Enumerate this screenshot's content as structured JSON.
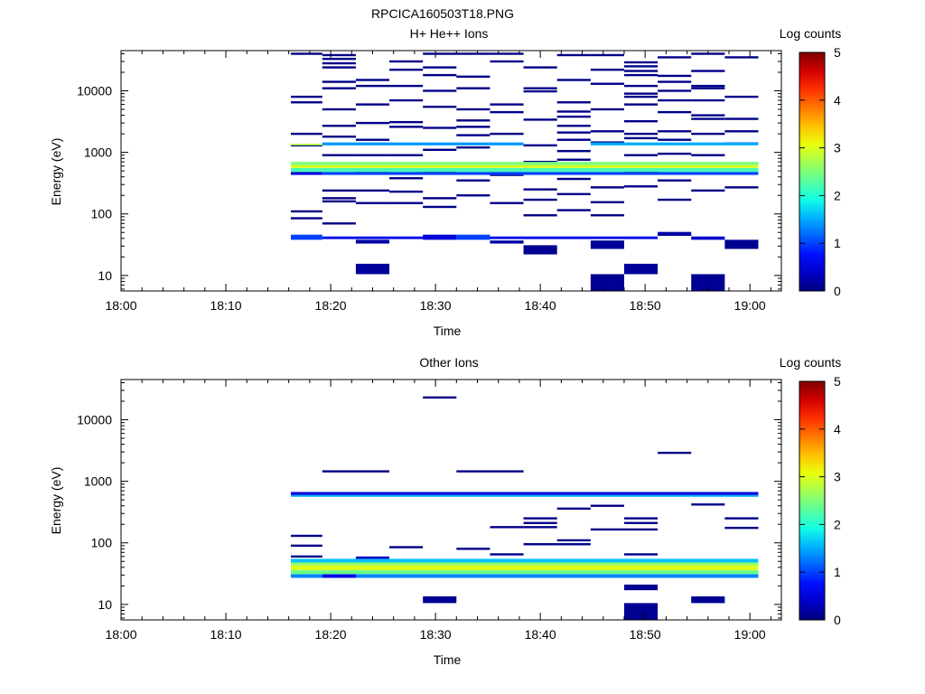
{
  "figure": {
    "title": "RPCICA160503T18.PNG"
  },
  "colorbar_colors": [
    "#00007f",
    "#0000c8",
    "#0010ff",
    "#0064ff",
    "#00b4ff",
    "#12ffe4",
    "#5aff9c",
    "#a2ff54",
    "#eaff0c",
    "#ffc000",
    "#ff7800",
    "#ff3000",
    "#d00000",
    "#800000"
  ],
  "chart_data": [
    {
      "type": "heatmap",
      "title": "H+ He++ Ions",
      "xlabel": "Time",
      "ylabel": "Energy (eV)",
      "x_ticks": [
        "18:00",
        "18:10",
        "18:20",
        "18:30",
        "18:40",
        "18:50",
        "19:00"
      ],
      "x_range_minutes": [
        0,
        63
      ],
      "y_scale": "log",
      "y_range": [
        5.6,
        45000
      ],
      "y_ticks": [
        10,
        100,
        1000,
        10000
      ],
      "y_tick_labels": [
        "10",
        "100",
        "1000",
        "10000"
      ],
      "colorbar": {
        "label": "Log counts",
        "range": [
          0,
          5
        ],
        "ticks": [
          "0",
          "1",
          "2",
          "3",
          "4",
          "5"
        ]
      },
      "sweep_starts_minutes": [
        16.2,
        19.2,
        22.4,
        25.6,
        28.8,
        32.0,
        35.2,
        38.4,
        41.6,
        44.8,
        48.0,
        51.2,
        54.4,
        57.6,
        60.8
      ],
      "cells": [
        {
          "t": [
            16.2,
            19.2
          ],
          "e": [
            38,
            46
          ],
          "v": 1.0
        },
        {
          "t": [
            19.2,
            51.2
          ],
          "e": [
            39,
            43
          ],
          "v": 0.6
        },
        {
          "t": [
            28.8,
            32.0
          ],
          "e": [
            38,
            46
          ],
          "v": 0.5
        },
        {
          "t": [
            32.0,
            35.2
          ],
          "e": [
            38,
            46
          ],
          "v": 1.0
        },
        {
          "t": [
            35.2,
            38.4
          ],
          "e": [
            33,
            37
          ],
          "v": 0.2
        },
        {
          "t": [
            38.4,
            41.6
          ],
          "e": [
            22,
            31
          ],
          "v": 0.1
        },
        {
          "t": [
            22.4,
            25.6
          ],
          "e": [
            33,
            38
          ],
          "v": 0.2
        },
        {
          "t": [
            44.8,
            48.0
          ],
          "e": [
            27,
            37
          ],
          "v": 0.15
        },
        {
          "t": [
            51.2,
            54.4
          ],
          "e": [
            44,
            51
          ],
          "v": 0.2
        },
        {
          "t": [
            54.4,
            57.6
          ],
          "e": [
            38,
            43
          ],
          "v": 0.4
        },
        {
          "t": [
            57.6,
            60.8
          ],
          "e": [
            27,
            38
          ],
          "v": 0.1
        },
        {
          "t": [
            22.4,
            25.6
          ],
          "e": [
            10.5,
            15.5
          ],
          "v": 0.15
        },
        {
          "t": [
            48.0,
            51.2
          ],
          "e": [
            10.5,
            15.5
          ],
          "v": 0.15
        },
        {
          "t": [
            44.8,
            48.0
          ],
          "e": [
            5.6,
            10.5
          ],
          "v": 0.1
        },
        {
          "t": [
            54.4,
            57.6
          ],
          "e": [
            5.6,
            10.5
          ],
          "v": 0.1
        },
        {
          "t": [
            16.2,
            60.8
          ],
          "e": [
            480,
            560
          ],
          "v": 2.2
        },
        {
          "t": [
            16.2,
            60.8
          ],
          "e": [
            560,
            620
          ],
          "v": 3.0
        },
        {
          "t": [
            16.2,
            60.8
          ],
          "e": [
            620,
            700
          ],
          "v": 2.5
        },
        {
          "t": [
            16.2,
            19.2
          ],
          "e": [
            430,
            480
          ],
          "v": 0.5
        },
        {
          "t": [
            19.2,
            60.8
          ],
          "e": [
            430,
            480
          ],
          "v": 1.0
        },
        {
          "t": [
            16.2,
            19.2
          ],
          "e": [
            1300,
            1380
          ],
          "v": 2.8
        },
        {
          "t": [
            19.2,
            38.4
          ],
          "e": [
            1300,
            1450
          ],
          "v": 1.4
        },
        {
          "t": [
            44.8,
            60.8
          ],
          "e": [
            1300,
            1450
          ],
          "v": 1.5
        }
      ],
      "sparse_lines": [
        {
          "t": [
            16.2,
            19.2
          ],
          "e": [
            40000,
            8000,
            6500,
            2000,
            1300,
            110,
            85
          ]
        },
        {
          "t": [
            19.2,
            22.4
          ],
          "e": [
            38000,
            33000,
            28000,
            24000,
            14000,
            11000,
            5000,
            2700,
            1800,
            900,
            520,
            240,
            180,
            160,
            70
          ]
        },
        {
          "t": [
            22.4,
            25.6
          ],
          "e": [
            15000,
            12000,
            6000,
            3000,
            1600,
            900,
            500,
            240,
            150
          ]
        },
        {
          "t": [
            25.6,
            28.8
          ],
          "e": [
            30000,
            22000,
            12000,
            7000,
            3100,
            2600,
            900,
            380,
            230,
            150
          ]
        },
        {
          "t": [
            28.8,
            32.0
          ],
          "e": [
            40000,
            24000,
            18000,
            10000,
            5500,
            2500,
            1100,
            480,
            180,
            130
          ]
        },
        {
          "t": [
            32.0,
            35.2
          ],
          "e": [
            40000,
            17000,
            11000,
            5000,
            3300,
            2600,
            1900,
            1200,
            350,
            200
          ]
        },
        {
          "t": [
            35.2,
            38.4
          ],
          "e": [
            40000,
            30000,
            6000,
            4500,
            2000,
            430,
            150
          ]
        },
        {
          "t": [
            38.4,
            41.6
          ],
          "e": [
            24000,
            11000,
            9800,
            3400,
            1300,
            700,
            250,
            170,
            95
          ]
        },
        {
          "t": [
            41.6,
            44.8
          ],
          "e": [
            38000,
            15000,
            6500,
            4600,
            3800,
            2700,
            2100,
            1600,
            1050,
            760,
            370,
            210,
            115
          ]
        },
        {
          "t": [
            44.8,
            48.0
          ],
          "e": [
            38000,
            22000,
            13000,
            5000,
            2200,
            1450,
            270,
            155,
            95
          ]
        },
        {
          "t": [
            48.0,
            51.2
          ],
          "e": [
            29000,
            25000,
            21000,
            18000,
            12000,
            9000,
            8000,
            6000,
            3200,
            2000,
            1700,
            900,
            480,
            280
          ]
        },
        {
          "t": [
            51.2,
            54.4
          ],
          "e": [
            35000,
            17500,
            14000,
            10000,
            7000,
            4500,
            2200,
            1600,
            950,
            350,
            170
          ]
        },
        {
          "t": [
            54.4,
            57.6
          ],
          "e": [
            40000,
            21000,
            12000,
            11000,
            7000,
            4000,
            3500,
            2000,
            900,
            240
          ]
        },
        {
          "t": [
            57.6,
            60.8
          ],
          "e": [
            35000,
            8000,
            3500,
            2200,
            1400,
            270
          ]
        }
      ]
    },
    {
      "type": "heatmap",
      "title": "Other Ions",
      "xlabel": "Time",
      "ylabel": "Energy (eV)",
      "x_ticks": [
        "18:00",
        "18:10",
        "18:20",
        "18:30",
        "18:40",
        "18:50",
        "19:00"
      ],
      "x_range_minutes": [
        0,
        63
      ],
      "y_scale": "log",
      "y_range": [
        5.6,
        45000
      ],
      "y_ticks": [
        10,
        100,
        1000,
        10000
      ],
      "y_tick_labels": [
        "10",
        "100",
        "1000",
        "10000"
      ],
      "colorbar": {
        "label": "Log counts",
        "range": [
          0,
          5
        ],
        "ticks": [
          "0",
          "1",
          "2",
          "3",
          "4",
          "5"
        ]
      },
      "sweep_starts_minutes": [
        16.2,
        19.2,
        22.4,
        25.6,
        28.8,
        32.0,
        35.2,
        38.4,
        41.6,
        44.8,
        48.0,
        51.2,
        54.4,
        57.6,
        60.8
      ],
      "cells": [
        {
          "t": [
            16.2,
            60.8
          ],
          "e": [
            27,
            31
          ],
          "v": 1.3
        },
        {
          "t": [
            19.2,
            22.4
          ],
          "e": [
            27,
            31
          ],
          "v": 0.6
        },
        {
          "t": [
            16.2,
            60.8
          ],
          "e": [
            31,
            36
          ],
          "v": 2.4
        },
        {
          "t": [
            16.2,
            60.8
          ],
          "e": [
            36,
            43
          ],
          "v": 3.0
        },
        {
          "t": [
            16.2,
            60.8
          ],
          "e": [
            43,
            48
          ],
          "v": 2.6
        },
        {
          "t": [
            16.2,
            60.8
          ],
          "e": [
            48,
            55
          ],
          "v": 1.6
        },
        {
          "t": [
            22.4,
            25.6
          ],
          "e": [
            55,
            60
          ],
          "v": 0.4
        },
        {
          "t": [
            16.2,
            60.8
          ],
          "e": [
            560,
            600
          ],
          "v": 1.5
        },
        {
          "t": [
            16.2,
            60.8
          ],
          "e": [
            600,
            670
          ],
          "v": 0.5
        },
        {
          "t": [
            28.8,
            32.0
          ],
          "e": [
            10.5,
            13.5
          ],
          "v": 0.1
        },
        {
          "t": [
            48.0,
            51.2
          ],
          "e": [
            17,
            21
          ],
          "v": 0.1
        },
        {
          "t": [
            48.0,
            51.2
          ],
          "e": [
            5.6,
            10.5
          ],
          "v": 0.1
        },
        {
          "t": [
            54.4,
            57.6
          ],
          "e": [
            10.5,
            13.5
          ],
          "v": 0.1
        }
      ],
      "sparse_lines": [
        {
          "t": [
            16.2,
            19.2
          ],
          "e": [
            130,
            90,
            60
          ]
        },
        {
          "t": [
            19.2,
            25.6
          ],
          "e": [
            1450
          ]
        },
        {
          "t": [
            25.6,
            28.8
          ],
          "e": [
            85
          ]
        },
        {
          "t": [
            28.8,
            32.0
          ],
          "e": [
            23000
          ]
        },
        {
          "t": [
            32.0,
            38.4
          ],
          "e": [
            1450
          ]
        },
        {
          "t": [
            32.0,
            35.2
          ],
          "e": [
            80
          ]
        },
        {
          "t": [
            35.2,
            38.4
          ],
          "e": [
            180,
            65
          ]
        },
        {
          "t": [
            38.4,
            41.6
          ],
          "e": [
            250,
            210,
            180,
            95
          ]
        },
        {
          "t": [
            41.6,
            44.8
          ],
          "e": [
            360,
            110,
            95
          ]
        },
        {
          "t": [
            44.8,
            48.0
          ],
          "e": [
            400,
            165
          ]
        },
        {
          "t": [
            48.0,
            51.2
          ],
          "e": [
            250,
            210,
            165,
            65
          ]
        },
        {
          "t": [
            51.2,
            54.4
          ],
          "e": [
            2900
          ]
        },
        {
          "t": [
            54.4,
            57.6
          ],
          "e": [
            420
          ]
        },
        {
          "t": [
            57.6,
            60.8
          ],
          "e": [
            250,
            175
          ]
        }
      ]
    }
  ]
}
